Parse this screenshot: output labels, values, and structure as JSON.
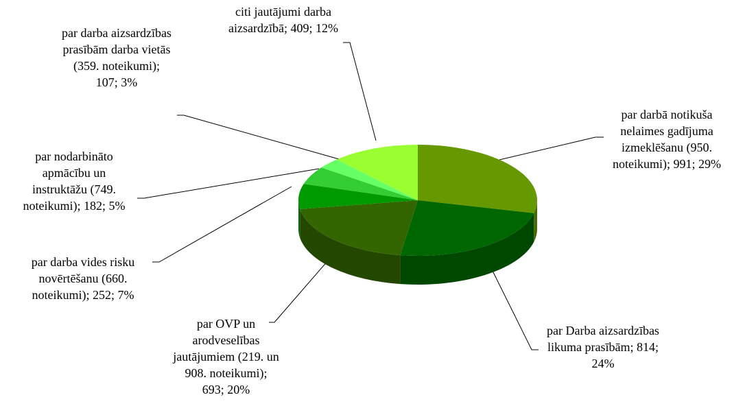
{
  "chart_data": {
    "type": "pie3d",
    "labels": [
      "par darbā notikuša nelaimes gadījuma izmeklēšanu (950. noteikumi); 991; 29%",
      "par Darba aizsardzības likuma prasībām; 814; 24%",
      "par OVP un arodveselības jautājumiem (219. un 908. noteikumi); 693; 20%",
      "par darba vides risku novērtēšanu (660. noteikumi); 252; 7%",
      "par nodarbināto apmācību un instruktāžu (749. noteikumi); 182; 5%",
      "par darba aizsardzības prasībām darba vietās (359. noteikumi); 107; 3%",
      "citi jautājumi darba aizsardzībā; 409; 12%"
    ],
    "values": [
      991,
      814,
      693,
      252,
      182,
      107,
      409
    ],
    "colors": [
      "#669900",
      "#006600",
      "#336600",
      "#009900",
      "#33cc33",
      "#66ff66",
      "#99ff33"
    ]
  }
}
